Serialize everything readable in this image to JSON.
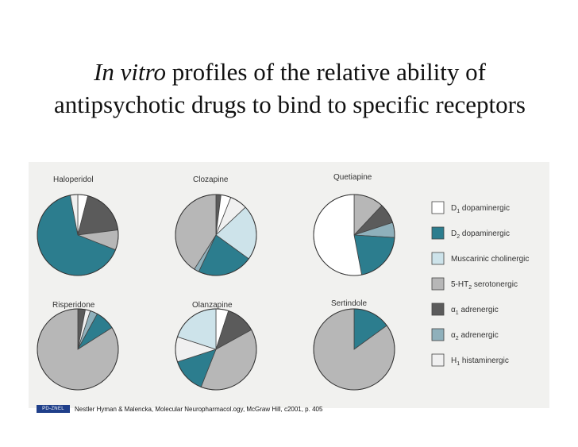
{
  "slide": {
    "title_italic": "In vitro",
    "title_rest": " profiles of the relative ability of antipsychotic drugs to bind to specific receptors"
  },
  "credit": {
    "logo_text": "PD-ZNEL",
    "text": "Nestler Hyman & Malencka, Molecular Neuropharmacol.ogy, McGraw Hill, c2001, p. 405"
  },
  "colors": {
    "D1": "#ffffff",
    "D2": "#2c7d8e",
    "Muscarinic": "#cde3ea",
    "5-HT2": "#b7b7b7",
    "alpha1": "#5b5b5b",
    "alpha2": "#8fb0bb",
    "H1": "#f0f0f0"
  },
  "chart_data": {
    "type": "pie",
    "legend_position": "right",
    "receptors": [
      {
        "key": "D1",
        "base": "D",
        "sub": "1",
        "suffix": " dopaminergic"
      },
      {
        "key": "D2",
        "base": "D",
        "sub": "2",
        "suffix": " dopaminergic"
      },
      {
        "key": "Muscarinic",
        "base": "Muscarinic cholinergic",
        "sub": "",
        "suffix": ""
      },
      {
        "key": "5-HT2",
        "base": "5-HT",
        "sub": "2",
        "suffix": " serotonergic"
      },
      {
        "key": "alpha1",
        "base": "α",
        "sub": "1",
        "suffix": " adrenergic"
      },
      {
        "key": "alpha2",
        "base": "α",
        "sub": "2",
        "suffix": " adrenergic"
      },
      {
        "key": "H1",
        "base": "H",
        "sub": "1",
        "suffix": " histaminergic"
      }
    ],
    "charts": [
      {
        "name": "Haloperidol",
        "slices": [
          {
            "receptor": "D1",
            "value": 4
          },
          {
            "receptor": "alpha1",
            "value": 19
          },
          {
            "receptor": "5-HT2",
            "value": 8
          },
          {
            "receptor": "D2",
            "value": 66
          },
          {
            "receptor": "H1",
            "value": 3
          }
        ]
      },
      {
        "name": "Clozapine",
        "slices": [
          {
            "receptor": "alpha1",
            "value": 2
          },
          {
            "receptor": "D1",
            "value": 4
          },
          {
            "receptor": "H1",
            "value": 7
          },
          {
            "receptor": "Muscarinic",
            "value": 22
          },
          {
            "receptor": "D2",
            "value": 22
          },
          {
            "receptor": "alpha2",
            "value": 2
          },
          {
            "receptor": "5-HT2",
            "value": 41
          }
        ]
      },
      {
        "name": "Quetiapine",
        "slices": [
          {
            "receptor": "5-HT2",
            "value": 12
          },
          {
            "receptor": "alpha1",
            "value": 8
          },
          {
            "receptor": "alpha2",
            "value": 6
          },
          {
            "receptor": "D2",
            "value": 21
          },
          {
            "receptor": "D1",
            "value": 53
          }
        ]
      },
      {
        "name": "Risperidone",
        "slices": [
          {
            "receptor": "alpha1",
            "value": 3
          },
          {
            "receptor": "H1",
            "value": 2
          },
          {
            "receptor": "alpha2",
            "value": 3
          },
          {
            "receptor": "D2",
            "value": 8
          },
          {
            "receptor": "5-HT2",
            "value": 84
          }
        ]
      },
      {
        "name": "Olanzapine",
        "slices": [
          {
            "receptor": "D1",
            "value": 5
          },
          {
            "receptor": "alpha1",
            "value": 12
          },
          {
            "receptor": "5-HT2",
            "value": 39
          },
          {
            "receptor": "D2",
            "value": 14
          },
          {
            "receptor": "H1",
            "value": 10
          },
          {
            "receptor": "Muscarinic",
            "value": 20
          }
        ]
      },
      {
        "name": "Sertindole",
        "slices": [
          {
            "receptor": "D2",
            "value": 15
          },
          {
            "receptor": "5-HT2",
            "value": 85
          }
        ]
      }
    ]
  }
}
